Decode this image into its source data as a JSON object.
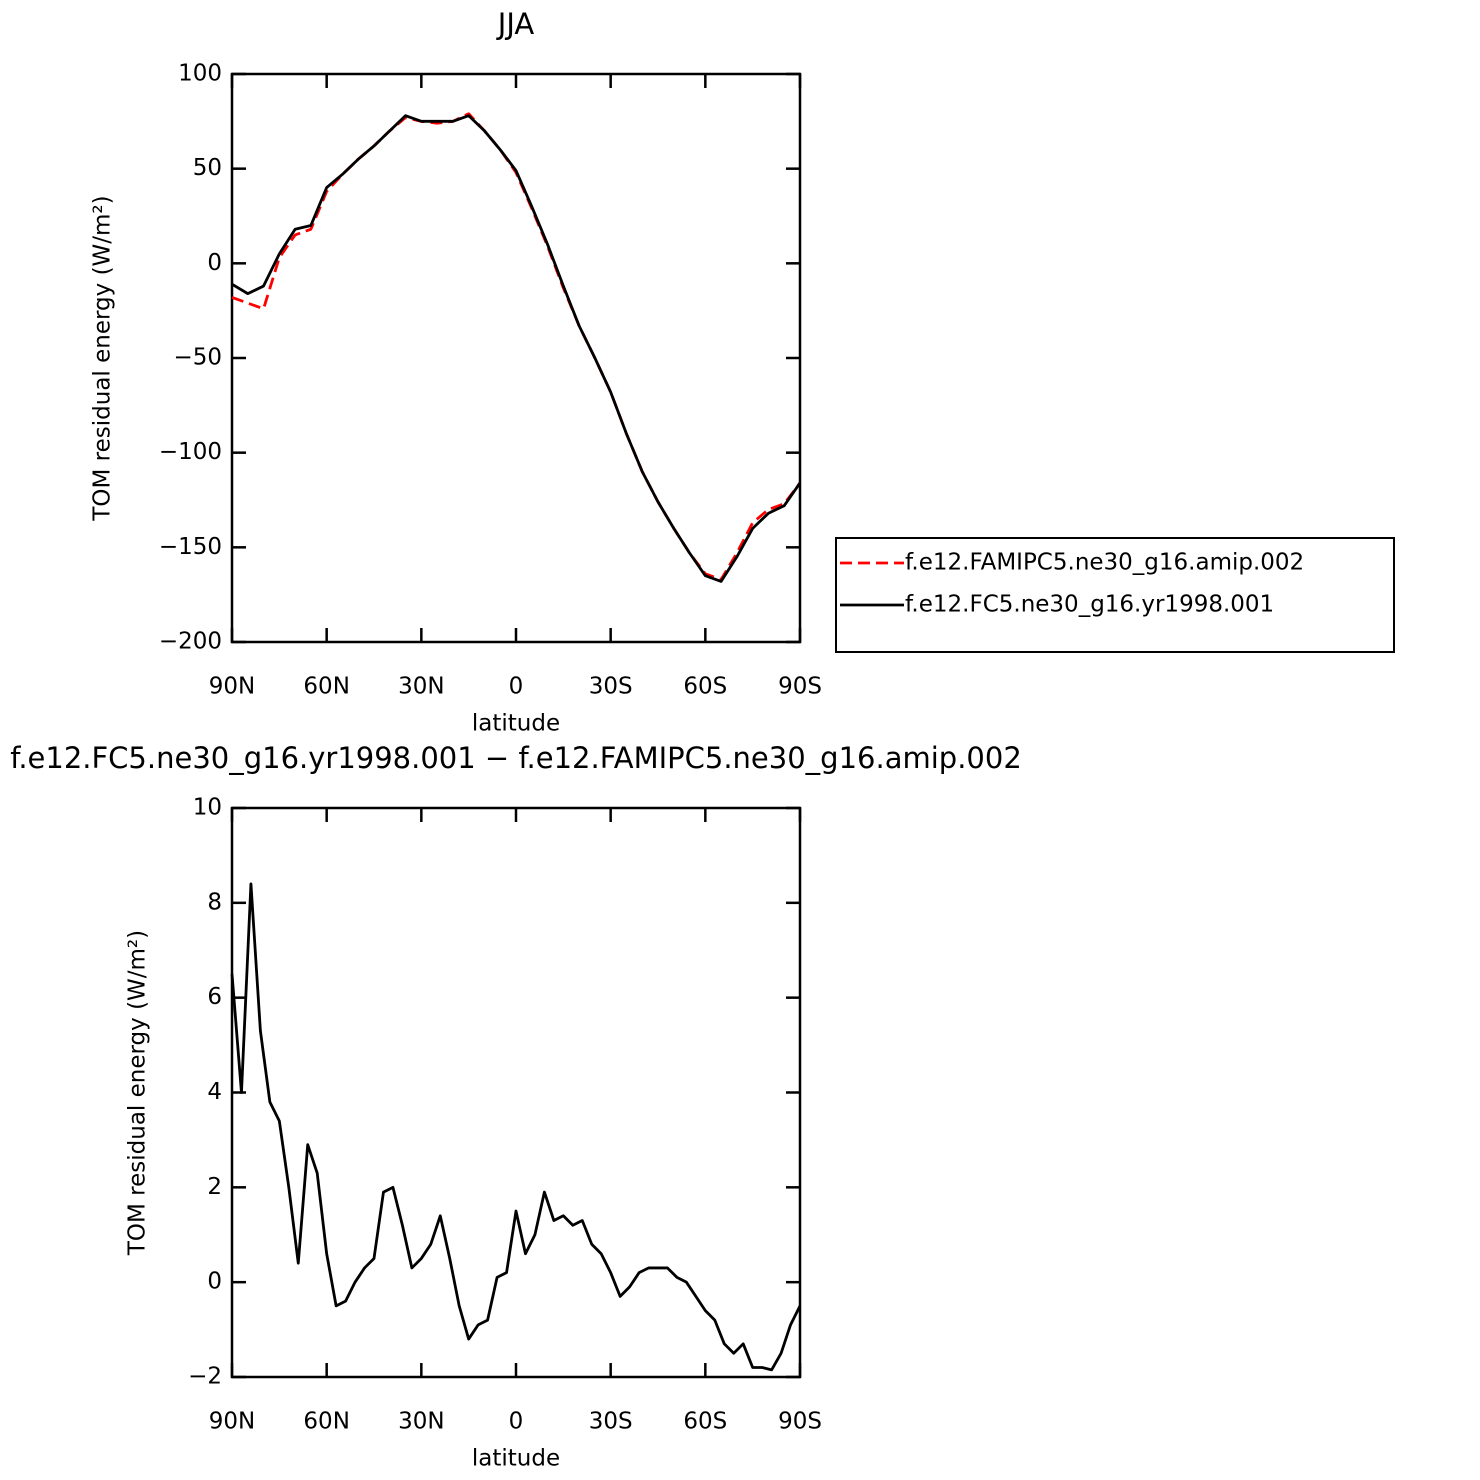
{
  "chart_data": [
    {
      "type": "line",
      "title": "JJA",
      "xlabel": "latitude",
      "ylabel": "TOM residual energy (W/m²)",
      "x": [
        90,
        85,
        80,
        75,
        70,
        65,
        60,
        55,
        50,
        45,
        40,
        35,
        30,
        25,
        20,
        15,
        10,
        5,
        0,
        -5,
        -10,
        -15,
        -20,
        -25,
        -30,
        -35,
        -40,
        -45,
        -50,
        -55,
        -60,
        -65,
        -70,
        -75,
        -80,
        -85,
        -90
      ],
      "series": [
        {
          "name": "f.e12.FAMIPC5.ne30_g16.amip.002",
          "color": "#ff0000",
          "style": "dashed",
          "values": [
            -18,
            -21,
            -24,
            3,
            15,
            18,
            38,
            47,
            55,
            62,
            70,
            77,
            75,
            74,
            75,
            79,
            70,
            60,
            48,
            29,
            9,
            -13,
            -33,
            -50,
            -68,
            -90,
            -110,
            -126,
            -140,
            -153,
            -164,
            -167,
            -153,
            -137,
            -130,
            -127,
            -116
          ]
        },
        {
          "name": "f.e12.FC5.ne30_g16.yr1998.001",
          "color": "#000000",
          "style": "solid",
          "values": [
            -11,
            -16,
            -12,
            5,
            18,
            20,
            40,
            47,
            55,
            62,
            70,
            78,
            75,
            75,
            75,
            78,
            70,
            60,
            49,
            30,
            10,
            -12,
            -33,
            -50,
            -68,
            -90,
            -110,
            -126,
            -140,
            -153,
            -165,
            -168,
            -155,
            -140,
            -132,
            -128,
            -116
          ]
        }
      ],
      "xlim": [
        90,
        -90
      ],
      "xticks": [
        {
          "value": 90,
          "label": "90N"
        },
        {
          "value": 60,
          "label": "60N"
        },
        {
          "value": 30,
          "label": "30N"
        },
        0,
        {
          "value": -30,
          "label": "30S"
        },
        {
          "value": -60,
          "label": "60S"
        },
        {
          "value": -90,
          "label": "90S"
        }
      ],
      "ylim": [
        -200,
        100
      ],
      "yticks": [
        100,
        50,
        0,
        {
          "value": -50,
          "label": "−50"
        },
        {
          "value": -100,
          "label": "−100"
        },
        {
          "value": -150,
          "label": "−150"
        },
        {
          "value": -200,
          "label": "−200"
        }
      ],
      "grid": false,
      "legend_position": "right"
    },
    {
      "type": "line",
      "title": "f.e12.FC5.ne30_g16.yr1998.001 − f.e12.FAMIPC5.ne30_g16.amip.002",
      "xlabel": "latitude",
      "ylabel": "TOM residual energy (W/m²)",
      "x": [
        90,
        87,
        84,
        81,
        78,
        75,
        72,
        69,
        66,
        63,
        60,
        57,
        54,
        51,
        48,
        45,
        42,
        39,
        36,
        33,
        30,
        27,
        24,
        21,
        18,
        15,
        12,
        9,
        6,
        3,
        0,
        -3,
        -6,
        -9,
        -12,
        -15,
        -18,
        -21,
        -24,
        -27,
        -30,
        -33,
        -36,
        -39,
        -42,
        -45,
        -48,
        -51,
        -54,
        -57,
        -60,
        -63,
        -66,
        -69,
        -72,
        -75,
        -78,
        -81,
        -84,
        -87,
        -90
      ],
      "values": [
        6.5,
        4.0,
        8.4,
        5.3,
        3.8,
        3.4,
        2.0,
        0.4,
        2.9,
        2.3,
        0.6,
        -0.5,
        -0.4,
        0.0,
        0.3,
        0.5,
        1.9,
        2.0,
        1.2,
        0.3,
        0.5,
        0.8,
        1.4,
        0.5,
        -0.5,
        -1.2,
        -0.9,
        -0.8,
        0.1,
        0.2,
        1.5,
        0.6,
        1.0,
        1.9,
        1.3,
        1.4,
        1.2,
        1.3,
        0.8,
        0.6,
        0.2,
        -0.3,
        -0.1,
        0.2,
        0.3,
        0.3,
        0.3,
        0.1,
        0.0,
        -0.3,
        -0.6,
        -0.8,
        -1.3,
        -1.5,
        -1.3,
        -1.8,
        -1.8,
        -1.85,
        -1.5,
        -0.9,
        -0.5
      ],
      "color": "#000000",
      "xlim": [
        90,
        -90
      ],
      "xticks": [
        {
          "value": 90,
          "label": "90N"
        },
        {
          "value": 60,
          "label": "60N"
        },
        {
          "value": 30,
          "label": "30N"
        },
        0,
        {
          "value": -30,
          "label": "30S"
        },
        {
          "value": -60,
          "label": "60S"
        },
        {
          "value": -90,
          "label": "90S"
        }
      ],
      "ylim": [
        -2,
        10
      ],
      "yticks": [
        10,
        8,
        6,
        4,
        2,
        0,
        {
          "value": -2,
          "label": "−2"
        }
      ],
      "grid": false
    }
  ]
}
